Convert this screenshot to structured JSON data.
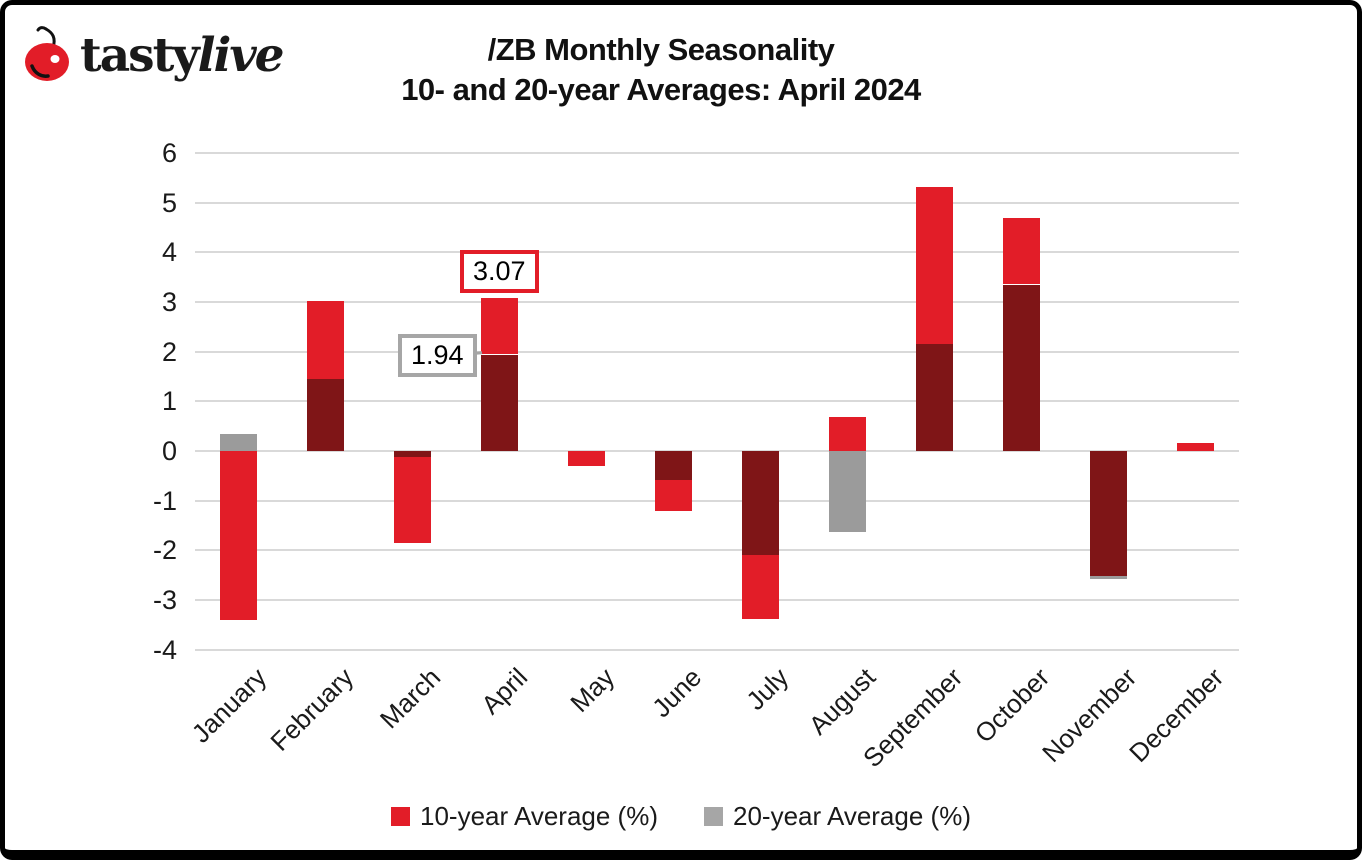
{
  "header": {
    "brand_prefix": "tasty",
    "brand_suffix": "live",
    "title_line1": "/ZB Monthly Seasonality",
    "title_line2": "10- and 20-year Averages: April 2024"
  },
  "colors": {
    "series_red": "#e21d28",
    "series_gray": "#9b9b9b",
    "overlap_dark": "#7f1517",
    "gridline": "#d9d9d9",
    "annotation_red_border": "#e21d28",
    "annotation_gray_border": "#a6a6a6",
    "cherry_red": "#e21d28",
    "text": "#1a1a1a"
  },
  "chart_data": {
    "type": "bar",
    "title": "/ZB Monthly Seasonality",
    "subtitle": "10- and 20-year Averages: April 2024",
    "categories": [
      "January",
      "February",
      "March",
      "April",
      "May",
      "June",
      "July",
      "August",
      "September",
      "October",
      "November",
      "December"
    ],
    "series": [
      {
        "name": "10-year Average (%)",
        "color_key": "series_red",
        "values": [
          -3.41,
          3.02,
          -1.85,
          3.07,
          -0.3,
          -1.2,
          -3.38,
          0.69,
          5.32,
          4.68,
          -2.52,
          0.16
        ]
      },
      {
        "name": "20-year Average (%)",
        "color_key": "series_gray",
        "values": [
          0.35,
          1.46,
          -0.12,
          1.94,
          0,
          -0.58,
          -2.1,
          -1.62,
          2.17,
          3.35,
          -2.58,
          0
        ]
      }
    ],
    "bar_style": "overlapped; overlap of the two series renders dark maroon",
    "ylim": [
      -4,
      6
    ],
    "yticks": [
      6,
      5,
      4,
      3,
      2,
      1,
      0,
      -1,
      -2,
      -3,
      -4
    ],
    "grid": true,
    "legend_position": "bottom",
    "annotations": [
      {
        "label": "3.07",
        "series": "10-year Average (%)",
        "category": "April",
        "value": 3.07
      },
      {
        "label": "1.94",
        "series": "20-year Average (%)",
        "category": "April",
        "value": 1.94
      }
    ]
  },
  "legend": {
    "items": [
      {
        "label": "10-year Average (%)",
        "color_key": "series_red"
      },
      {
        "label": "20-year Average (%)",
        "color_key": "series_gray"
      }
    ]
  }
}
